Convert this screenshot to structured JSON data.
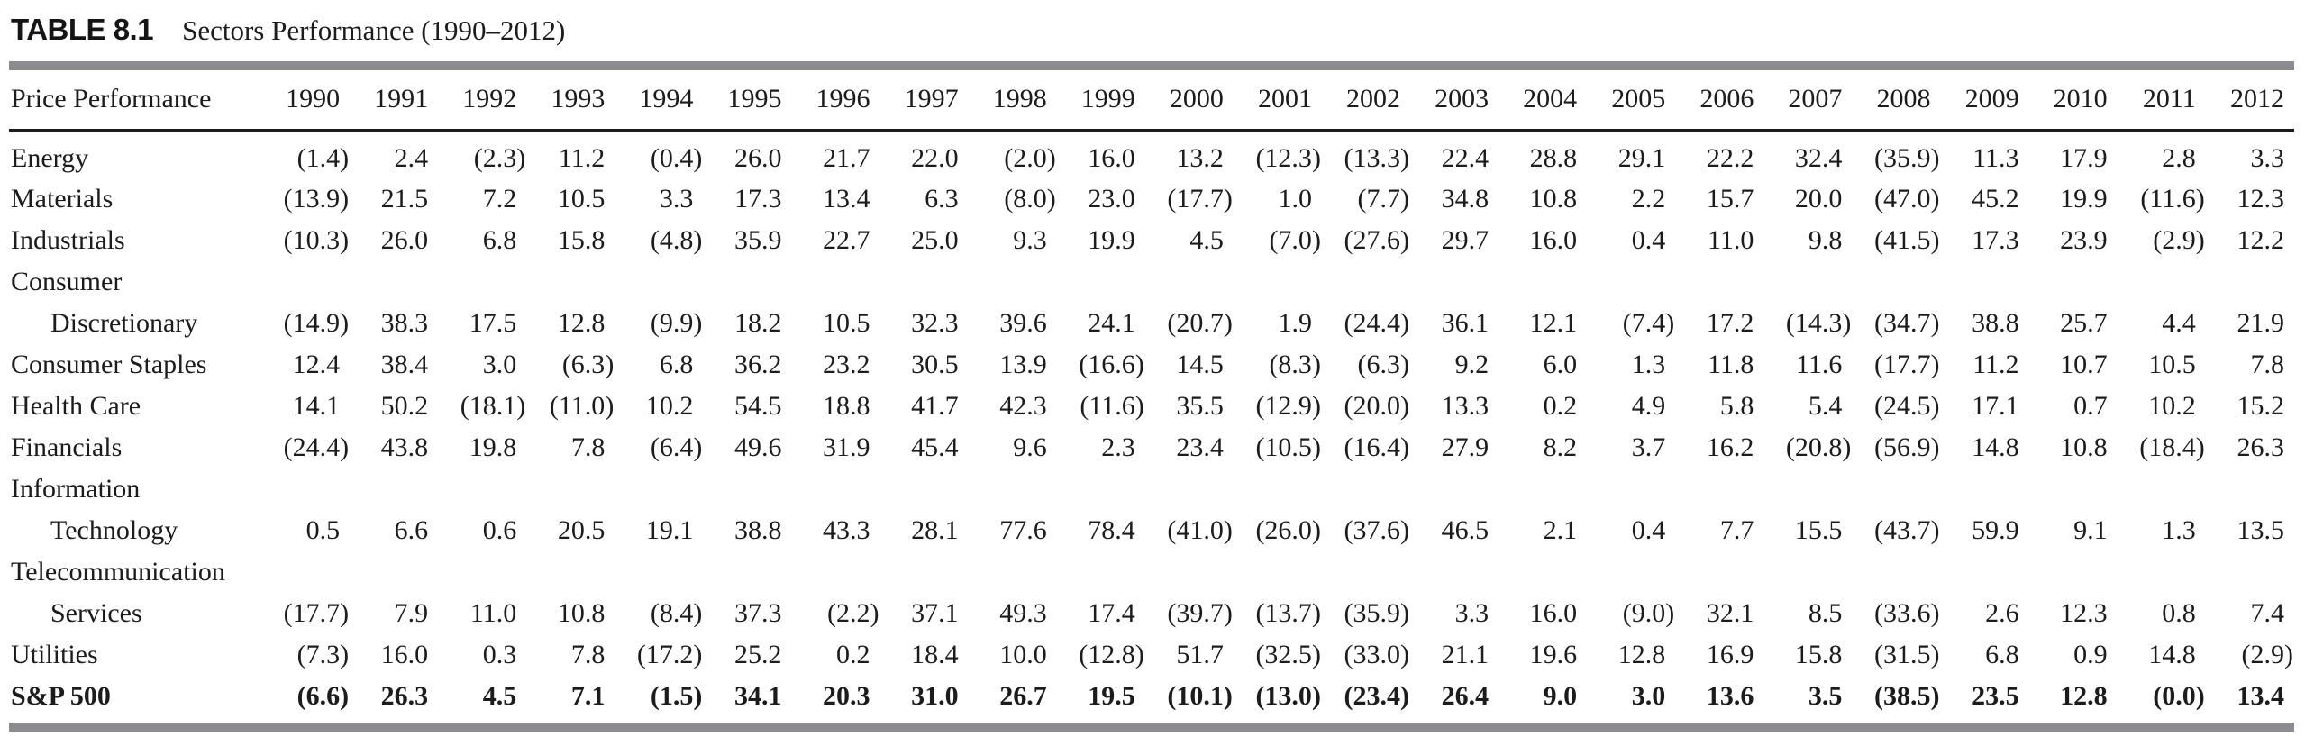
{
  "caption": {
    "number": "TABLE 8.1",
    "title": "Sectors Performance (1990–2012)"
  },
  "table": {
    "header_label": "Price Performance",
    "years": [
      "1990",
      "1991",
      "1992",
      "1993",
      "1994",
      "1995",
      "1996",
      "1997",
      "1998",
      "1999",
      "2000",
      "2001",
      "2002",
      "2003",
      "2004",
      "2005",
      "2006",
      "2007",
      "2008",
      "2009",
      "2010",
      "2011",
      "2012"
    ],
    "rows": [
      {
        "label": "Energy",
        "indent": false,
        "bold": false,
        "values": [
          "(1.4)",
          "2.4",
          "(2.3)",
          "11.2",
          "(0.4)",
          "26.0",
          "21.7",
          "22.0",
          "(2.0)",
          "16.0",
          "13.2",
          "(12.3)",
          "(13.3)",
          "22.4",
          "28.8",
          "29.1",
          "22.2",
          "32.4",
          "(35.9)",
          "11.3",
          "17.9",
          "2.8",
          "3.3"
        ]
      },
      {
        "label": "Materials",
        "indent": false,
        "bold": false,
        "values": [
          "(13.9)",
          "21.5",
          "7.2",
          "10.5",
          "3.3",
          "17.3",
          "13.4",
          "6.3",
          "(8.0)",
          "23.0",
          "(17.7)",
          "1.0",
          "(7.7)",
          "34.8",
          "10.8",
          "2.2",
          "15.7",
          "20.0",
          "(47.0)",
          "45.2",
          "19.9",
          "(11.6)",
          "12.3"
        ]
      },
      {
        "label": "Industrials",
        "indent": false,
        "bold": false,
        "values": [
          "(10.3)",
          "26.0",
          "6.8",
          "15.8",
          "(4.8)",
          "35.9",
          "22.7",
          "25.0",
          "9.3",
          "19.9",
          "4.5",
          "(7.0)",
          "(27.6)",
          "29.7",
          "16.0",
          "0.4",
          "11.0",
          "9.8",
          "(41.5)",
          "17.3",
          "23.9",
          "(2.9)",
          "12.2"
        ]
      },
      {
        "label": "Consumer",
        "indent": false,
        "bold": false,
        "values": []
      },
      {
        "label": "Discretionary",
        "indent": true,
        "bold": false,
        "values": [
          "(14.9)",
          "38.3",
          "17.5",
          "12.8",
          "(9.9)",
          "18.2",
          "10.5",
          "32.3",
          "39.6",
          "24.1",
          "(20.7)",
          "1.9",
          "(24.4)",
          "36.1",
          "12.1",
          "(7.4)",
          "17.2",
          "(14.3)",
          "(34.7)",
          "38.8",
          "25.7",
          "4.4",
          "21.9"
        ]
      },
      {
        "label": "Consumer Staples",
        "indent": false,
        "bold": false,
        "values": [
          "12.4",
          "38.4",
          "3.0",
          "(6.3)",
          "6.8",
          "36.2",
          "23.2",
          "30.5",
          "13.9",
          "(16.6)",
          "14.5",
          "(8.3)",
          "(6.3)",
          "9.2",
          "6.0",
          "1.3",
          "11.8",
          "11.6",
          "(17.7)",
          "11.2",
          "10.7",
          "10.5",
          "7.8"
        ]
      },
      {
        "label": "Health Care",
        "indent": false,
        "bold": false,
        "values": [
          "14.1",
          "50.2",
          "(18.1)",
          "(11.0)",
          "10.2",
          "54.5",
          "18.8",
          "41.7",
          "42.3",
          "(11.6)",
          "35.5",
          "(12.9)",
          "(20.0)",
          "13.3",
          "0.2",
          "4.9",
          "5.8",
          "5.4",
          "(24.5)",
          "17.1",
          "0.7",
          "10.2",
          "15.2"
        ]
      },
      {
        "label": "Financials",
        "indent": false,
        "bold": false,
        "values": [
          "(24.4)",
          "43.8",
          "19.8",
          "7.8",
          "(6.4)",
          "49.6",
          "31.9",
          "45.4",
          "9.6",
          "2.3",
          "23.4",
          "(10.5)",
          "(16.4)",
          "27.9",
          "8.2",
          "3.7",
          "16.2",
          "(20.8)",
          "(56.9)",
          "14.8",
          "10.8",
          "(18.4)",
          "26.3"
        ]
      },
      {
        "label": "Information",
        "indent": false,
        "bold": false,
        "values": []
      },
      {
        "label": "Technology",
        "indent": true,
        "bold": false,
        "values": [
          "0.5",
          "6.6",
          "0.6",
          "20.5",
          "19.1",
          "38.8",
          "43.3",
          "28.1",
          "77.6",
          "78.4",
          "(41.0)",
          "(26.0)",
          "(37.6)",
          "46.5",
          "2.1",
          "0.4",
          "7.7",
          "15.5",
          "(43.7)",
          "59.9",
          "9.1",
          "1.3",
          "13.5"
        ]
      },
      {
        "label": "Telecommunication",
        "indent": false,
        "bold": false,
        "values": []
      },
      {
        "label": "Services",
        "indent": true,
        "bold": false,
        "values": [
          "(17.7)",
          "7.9",
          "11.0",
          "10.8",
          "(8.4)",
          "37.3",
          "(2.2)",
          "37.1",
          "49.3",
          "17.4",
          "(39.7)",
          "(13.7)",
          "(35.9)",
          "3.3",
          "16.0",
          "(9.0)",
          "32.1",
          "8.5",
          "(33.6)",
          "2.6",
          "12.3",
          "0.8",
          "7.4"
        ]
      },
      {
        "label": "Utilities",
        "indent": false,
        "bold": false,
        "values": [
          "(7.3)",
          "16.0",
          "0.3",
          "7.8",
          "(17.2)",
          "25.2",
          "0.2",
          "18.4",
          "10.0",
          "(12.8)",
          "51.7",
          "(32.5)",
          "(33.0)",
          "21.1",
          "19.6",
          "12.8",
          "16.9",
          "15.8",
          "(31.5)",
          "6.8",
          "0.9",
          "14.8",
          "(2.9)"
        ]
      },
      {
        "label": "S&P 500",
        "indent": false,
        "bold": true,
        "values": [
          "(6.6)",
          "26.3",
          "4.5",
          "7.1",
          "(1.5)",
          "34.1",
          "20.3",
          "31.0",
          "26.7",
          "19.5",
          "(10.1)",
          "(13.0)",
          "(23.4)",
          "26.4",
          "9.0",
          "3.0",
          "13.6",
          "3.5",
          "(38.5)",
          "23.5",
          "12.8",
          "(0.0)",
          "13.4"
        ]
      }
    ]
  },
  "colors": {
    "rule_gray": "#8b8b90",
    "rule_black": "#1b1b1d",
    "text": "#1c1c1e"
  }
}
